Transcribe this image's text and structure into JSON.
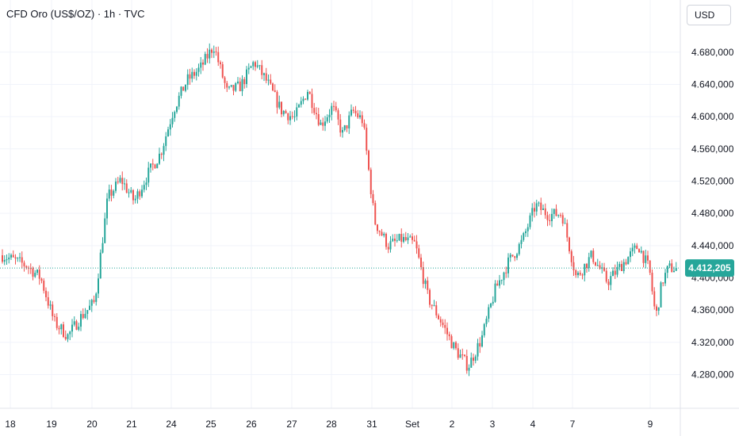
{
  "header": {
    "title": "CFD Oro (US$/OZ) · 1h · TVC",
    "currency": "USD"
  },
  "colors": {
    "up": "#26a69a",
    "down": "#ef5350",
    "grid": "#f0f3fa",
    "last_price_badge": "#26a69a",
    "text": "#131722"
  },
  "chart_data": {
    "type": "candlestick",
    "title": "CFD Oro (US$/OZ) · 1h · TVC",
    "y_axis": {
      "ticks": [
        "4.680,000",
        "4.640,000",
        "4.600,000",
        "4.560,000",
        "4.520,000",
        "4.480,000",
        "4.440,000",
        "4.400,000",
        "4.360,000",
        "4.320,000",
        "4.280,000"
      ],
      "tick_values": [
        4680,
        4640,
        4600,
        4560,
        4520,
        4480,
        4440,
        4400,
        4360,
        4320,
        4280
      ],
      "range": [
        4253,
        4725
      ]
    },
    "x_axis": {
      "labels": [
        "18",
        "19",
        "20",
        "21",
        "24",
        "25",
        "26",
        "27",
        "28",
        "31",
        "Set",
        "2",
        "3",
        "4",
        "7",
        "9"
      ]
    },
    "last_price": {
      "value": 4412.205,
      "label": "4.412,205"
    },
    "price_path": [
      {
        "session": "18",
        "close": 4428
      },
      {
        "session": "18",
        "close": 4415
      },
      {
        "session": "18",
        "close": 4400
      },
      {
        "session": "19",
        "close": 4345
      },
      {
        "session": "19",
        "close": 4328
      },
      {
        "session": "19",
        "close": 4352
      },
      {
        "session": "20",
        "close": 4370
      },
      {
        "session": "20",
        "close": 4500
      },
      {
        "session": "20",
        "close": 4522
      },
      {
        "session": "21",
        "close": 4495
      },
      {
        "session": "21",
        "close": 4528
      },
      {
        "session": "21",
        "close": 4555
      },
      {
        "session": "24",
        "close": 4610
      },
      {
        "session": "24",
        "close": 4645
      },
      {
        "session": "24",
        "close": 4660
      },
      {
        "session": "25",
        "close": 4688
      },
      {
        "session": "25",
        "close": 4630
      },
      {
        "session": "25",
        "close": 4638
      },
      {
        "session": "26",
        "close": 4668
      },
      {
        "session": "26",
        "close": 4642
      },
      {
        "session": "26",
        "close": 4608
      },
      {
        "session": "27",
        "close": 4598
      },
      {
        "session": "27",
        "close": 4633
      },
      {
        "session": "27",
        "close": 4590
      },
      {
        "session": "28",
        "close": 4612
      },
      {
        "session": "28",
        "close": 4578
      },
      {
        "session": "28",
        "close": 4607
      },
      {
        "session": "28",
        "close": 4595
      },
      {
        "session": "31",
        "close": 4470
      },
      {
        "session": "31",
        "close": 4440
      },
      {
        "session": "31",
        "close": 4448
      },
      {
        "session": "Set",
        "close": 4442
      },
      {
        "session": "Set",
        "close": 4375
      },
      {
        "session": "Set",
        "close": 4345
      },
      {
        "session": "2",
        "close": 4312
      },
      {
        "session": "2",
        "close": 4290
      },
      {
        "session": "2",
        "close": 4325
      },
      {
        "session": "3",
        "close": 4385
      },
      {
        "session": "3",
        "close": 4420
      },
      {
        "session": "3",
        "close": 4445
      },
      {
        "session": "4",
        "close": 4490
      },
      {
        "session": "4",
        "close": 4478
      },
      {
        "session": "4",
        "close": 4480
      },
      {
        "session": "7",
        "close": 4400
      },
      {
        "session": "7",
        "close": 4428
      },
      {
        "session": "7",
        "close": 4395
      },
      {
        "session": "7",
        "close": 4418
      },
      {
        "session": "7",
        "close": 4440
      },
      {
        "session": "9",
        "close": 4410
      },
      {
        "session": "9",
        "close": 4350
      },
      {
        "session": "9",
        "close": 4395
      },
      {
        "session": "9",
        "close": 4412
      }
    ]
  }
}
